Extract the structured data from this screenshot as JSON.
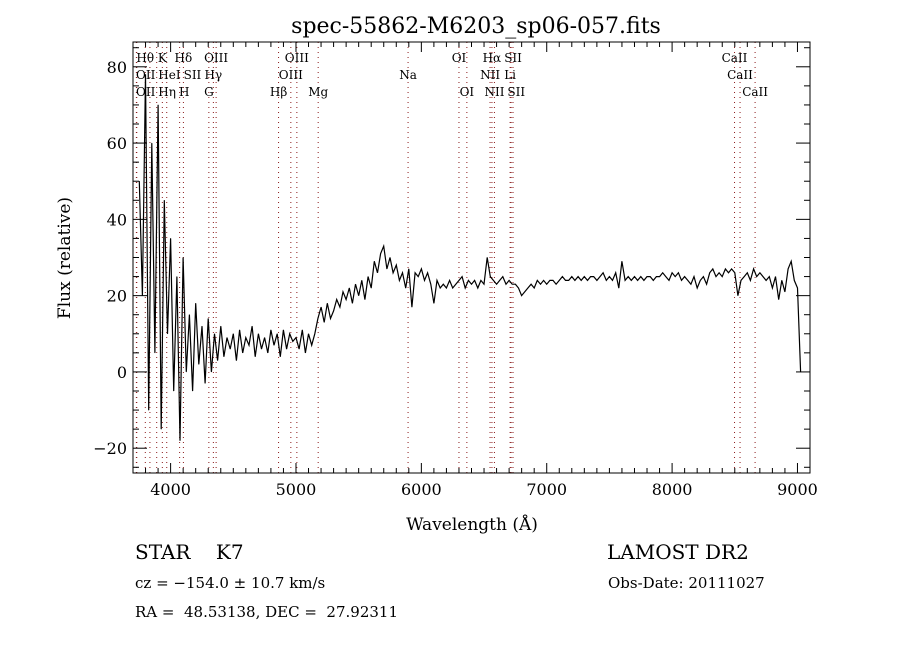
{
  "chart_data": {
    "type": "line",
    "title": "spec-55862-M6203_sp06-057.fits",
    "xlabel": "Wavelength (Å)",
    "ylabel": "Flux (relative)",
    "xlim": [
      3700,
      9100
    ],
    "ylim": [
      -26.5,
      86.5
    ],
    "x_ticks": [
      4000,
      5000,
      6000,
      7000,
      8000,
      9000
    ],
    "y_ticks": [
      -20,
      0,
      20,
      40,
      60,
      80
    ],
    "grid": false,
    "series": [
      {
        "name": "spectrum",
        "x_start": 3750,
        "x_step": 25,
        "values": [
          50,
          20,
          78,
          -10,
          60,
          5,
          70,
          -15,
          45,
          10,
          35,
          -5,
          25,
          -18,
          30,
          0,
          15,
          -5,
          18,
          2,
          12,
          -3,
          14,
          0,
          10,
          3,
          12,
          4,
          9,
          6,
          10,
          3,
          11,
          5,
          9,
          7,
          12,
          4,
          10,
          6,
          9,
          5,
          11,
          7,
          10,
          4,
          11,
          6,
          10,
          8,
          9,
          6,
          11,
          5,
          10,
          7,
          10,
          14,
          17,
          13,
          18,
          14,
          16,
          19,
          17,
          21,
          19,
          22,
          18,
          23,
          20,
          24,
          19,
          25,
          22,
          29,
          26,
          31,
          33,
          27,
          30,
          26,
          28,
          24,
          26,
          22,
          27,
          17,
          26,
          25,
          27,
          24,
          26,
          23,
          18,
          24,
          22,
          23,
          22,
          24,
          22,
          23,
          24,
          25,
          22,
          24,
          23,
          24,
          22,
          24,
          23,
          30,
          25,
          24,
          23,
          24,
          25,
          23,
          24,
          23,
          23,
          22,
          20,
          21,
          22,
          23,
          22,
          24,
          23,
          24,
          23,
          24,
          24,
          23,
          24,
          25,
          24,
          24,
          25,
          24,
          25,
          24,
          25,
          24,
          25,
          25,
          24,
          25,
          26,
          24,
          25,
          24,
          26,
          22,
          29,
          24,
          25,
          24,
          25,
          24,
          25,
          24,
          25,
          25,
          24,
          25,
          25,
          26,
          25,
          24,
          26,
          25,
          26,
          24,
          25,
          24,
          23,
          25,
          22,
          24,
          25,
          23,
          26,
          27,
          25,
          26,
          25,
          27,
          26,
          27,
          26,
          20,
          24,
          25,
          26,
          24,
          27,
          25,
          26,
          25,
          24,
          25,
          22,
          25,
          19,
          24,
          21,
          27,
          29,
          24,
          22,
          0
        ]
      }
    ],
    "line_markers": [
      {
        "label": "Hθ",
        "wavelength": 3798,
        "row": 0
      },
      {
        "label": "K",
        "wavelength": 3934,
        "row": 0
      },
      {
        "label": "Hδ",
        "wavelength": 4102,
        "row": 0
      },
      {
        "label": "OIII",
        "wavelength": 4363,
        "row": 0
      },
      {
        "label": "OIII",
        "wavelength": 5007,
        "row": 0
      },
      {
        "label": "OI",
        "wavelength": 6300,
        "row": 0
      },
      {
        "label": "Hα",
        "wavelength": 6563,
        "row": 0
      },
      {
        "label": "SII",
        "wavelength": 6716,
        "row": 0
      },
      {
        "label": "CaII",
        "wavelength": 8498,
        "row": 0
      },
      {
        "label": "OII",
        "wavelength": 3727,
        "row": 1
      },
      {
        "label": "HeI",
        "wavelength": 3889,
        "row": 1
      },
      {
        "label": "SII",
        "wavelength": 4072,
        "row": 1
      },
      {
        "label": "Hγ",
        "wavelength": 4341,
        "row": 1
      },
      {
        "label": "OIII",
        "wavelength": 4959,
        "row": 1
      },
      {
        "label": "Na",
        "wavelength": 5894,
        "row": 1
      },
      {
        "label": "NII",
        "wavelength": 6548,
        "row": 1
      },
      {
        "label": "Li",
        "wavelength": 6708,
        "row": 1
      },
      {
        "label": "CaII",
        "wavelength": 8542,
        "row": 1
      },
      {
        "label": "OII",
        "wavelength": 3730,
        "row": 2
      },
      {
        "label": "Hη",
        "wavelength": 3835,
        "row": 2
      },
      {
        "label": "H",
        "wavelength": 3969,
        "row": 2
      },
      {
        "label": "G",
        "wavelength": 4305,
        "row": 2
      },
      {
        "label": "Hβ",
        "wavelength": 4861,
        "row": 2
      },
      {
        "label": "Mg",
        "wavelength": 5177,
        "row": 2
      },
      {
        "label": "OI",
        "wavelength": 6363,
        "row": 2
      },
      {
        "label": "NII",
        "wavelength": 6583,
        "row": 2
      },
      {
        "label": "SII",
        "wavelength": 6731,
        "row": 2
      },
      {
        "label": "CaII",
        "wavelength": 8662,
        "row": 2
      }
    ],
    "colors": {
      "spectrum": "#000000",
      "markers": "#8b1a1a"
    }
  },
  "info": {
    "class": "STAR",
    "subclass": "K7",
    "survey": "LAMOST DR2",
    "cz": "cz = −154.0 ± 10.7 km/s",
    "obs_date": "Obs-Date: 20111027",
    "coords": "RA =  48.53138, DEC =  27.92311"
  }
}
